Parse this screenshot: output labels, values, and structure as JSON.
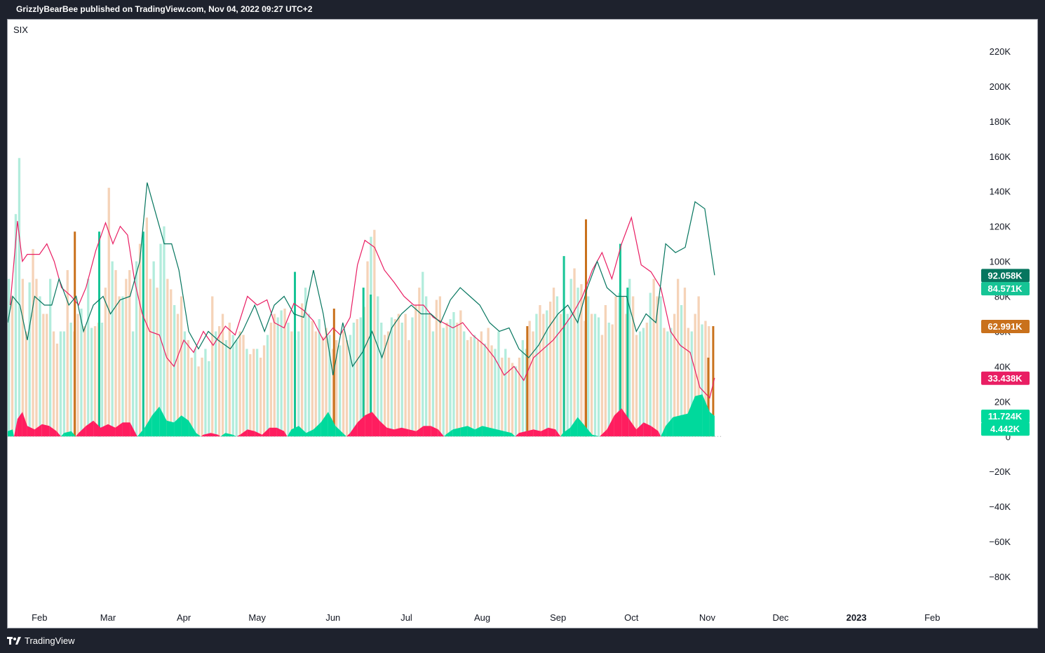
{
  "header": {
    "published_line": "GrizzlyBearBee published on TradingView.com, Nov 04, 2022 09:27 UTC+2"
  },
  "footer": {
    "brand": "TradingView"
  },
  "colors": {
    "volume_up": "#b2ecdc",
    "volume_down": "#f5d3b8",
    "spike_up": "#16c495",
    "spike_down": "#c9711c",
    "line_red": "#e91e63",
    "line_green": "#06765f",
    "area_green": "#00d99c",
    "area_red": "#ff1d5f"
  },
  "chart_data": {
    "type": "bar",
    "symbol": "SIX",
    "ylim": [
      -90000,
      230000
    ],
    "y_ticks": [
      "220K",
      "200K",
      "180K",
      "160K",
      "140K",
      "120K",
      "100K",
      "80K",
      "60K",
      "40K",
      "20K",
      "0",
      "−20K",
      "−40K",
      "−60K",
      "−80K"
    ],
    "y_tick_values": [
      220000,
      200000,
      180000,
      160000,
      140000,
      120000,
      100000,
      80000,
      60000,
      40000,
      20000,
      0,
      -20000,
      -40000,
      -60000,
      -80000
    ],
    "x_months": [
      "Feb",
      "Mar",
      "Apr",
      "May",
      "Jun",
      "Jul",
      "Aug",
      "Sep",
      "Oct",
      "Nov",
      "Dec",
      "2023",
      "Feb"
    ],
    "x_month_dates": [
      "2022-02-01",
      "2022-03-01",
      "2022-04-01",
      "2022-05-01",
      "2022-06-01",
      "2022-07-01",
      "2022-08-01",
      "2022-09-01",
      "2022-10-01",
      "2022-11-01",
      "2022-12-01",
      "2023-01-01",
      "2023-02-01"
    ],
    "x_range": [
      "2022-01-19",
      "2023-02-21"
    ],
    "grid": false,
    "last_values": [
      {
        "label": "92.058K",
        "value": 92058,
        "color": "#06765f"
      },
      {
        "label": "84.571K",
        "value": 84571,
        "color": "#16c495"
      },
      {
        "label": "62.991K",
        "value": 62991,
        "color": "#c9711c"
      },
      {
        "label": "33.438K",
        "value": 33438,
        "color": "#e91e63"
      },
      {
        "label": "11.724K",
        "value": 11724,
        "color": "#00d99c"
      },
      {
        "label": "4.442K",
        "value": 4442,
        "color": "#00d99c"
      }
    ],
    "series": [
      {
        "name": "",
        "kind": "volume_bars",
        "start": "2022-01-19",
        "step_days": 1.41,
        "values": [
          90000,
          80000,
          127000,
          159000,
          90000,
          60000,
          88000,
          107000,
          90000,
          80000,
          70000,
          70000,
          90000,
          60000,
          53000,
          60000,
          60000,
          95000,
          65000,
          60000,
          70000,
          73000,
          63000,
          90000,
          62000,
          63000,
          65000,
          65000,
          85000,
          142000,
          100000,
          95000,
          80000,
          80000,
          90000,
          95000,
          60000,
          100000,
          110000,
          110000,
          125000,
          90000,
          100000,
          85000,
          110000,
          120000,
          90000,
          84000,
          75000,
          70000,
          80000,
          60000,
          55000,
          45000,
          50000,
          40000,
          45000,
          50000,
          43000,
          80000,
          60000,
          63000,
          70000,
          55000,
          65000,
          58000,
          55000,
          60000,
          58000,
          50000,
          47000,
          50000,
          50000,
          45000,
          52000,
          58000,
          65000,
          70000,
          68000,
          72000,
          73000,
          65000,
          60000,
          55000,
          60000,
          76000,
          85000,
          70000,
          66000,
          60000,
          67000,
          57000,
          62000,
          58000,
          50000,
          55000,
          52000,
          60000,
          55000,
          58000,
          65000,
          67000,
          68000,
          74000,
          100000,
          114000,
          118000,
          80000,
          65000,
          58000,
          60000,
          68000,
          67000,
          70000,
          65000,
          70000,
          55000,
          68000,
          75000,
          85000,
          94000,
          80000,
          70000,
          60000,
          78000,
          80000,
          62000,
          65000,
          67000,
          71000,
          65000,
          72000,
          60000,
          55000,
          57000,
          58000,
          55000,
          60000,
          53000,
          62000,
          52000,
          50000,
          60000,
          45000,
          50000,
          45000,
          42000,
          40000,
          45000,
          55000,
          50000,
          66000,
          60000,
          70000,
          75000,
          70000,
          72000,
          77000,
          85000,
          80000,
          70000,
          73000,
          70000,
          90000,
          96000,
          85000,
          87000,
          66000,
          80000,
          70000,
          70000,
          68000,
          58000,
          75000,
          65000,
          64000,
          80000,
          82000,
          80000,
          70000,
          90000,
          80000,
          58000,
          60000,
          62000,
          65000,
          82000,
          90000,
          80000,
          80000,
          62000,
          60000,
          62000,
          70000,
          90000,
          75000,
          85000,
          62000,
          60000,
          70000,
          80000,
          64000,
          66000,
          63000
        ]
      },
      {
        "name": "",
        "kind": "volume_spikes",
        "values": [
          {
            "date": "2022-02-15",
            "value": 117000,
            "dir": "down"
          },
          {
            "date": "2022-02-25",
            "value": 117000,
            "dir": "up"
          },
          {
            "date": "2022-03-15",
            "value": 117000,
            "dir": "up"
          },
          {
            "date": "2022-05-16",
            "value": 94000,
            "dir": "up"
          },
          {
            "date": "2022-06-01",
            "value": 73000,
            "dir": "down"
          },
          {
            "date": "2022-06-13",
            "value": 85000,
            "dir": "up"
          },
          {
            "date": "2022-06-16",
            "value": 81000,
            "dir": "up"
          },
          {
            "date": "2022-08-19",
            "value": 63000,
            "dir": "down"
          },
          {
            "date": "2022-09-03",
            "value": 103000,
            "dir": "up"
          },
          {
            "date": "2022-09-12",
            "value": 124000,
            "dir": "down"
          },
          {
            "date": "2022-09-26",
            "value": 110000,
            "dir": "up"
          },
          {
            "date": "2022-09-29",
            "value": 85000,
            "dir": "up"
          },
          {
            "date": "2022-11-01",
            "value": 45000,
            "dir": "down"
          },
          {
            "date": "2022-11-03",
            "value": 63000,
            "dir": "down"
          }
        ]
      },
      {
        "name": "",
        "kind": "line_red",
        "x": [
          "2022-01-20",
          "2022-01-23",
          "2022-01-25",
          "2022-01-27",
          "2022-02-01",
          "2022-02-04",
          "2022-02-07",
          "2022-02-10",
          "2022-02-14",
          "2022-02-17",
          "2022-02-20",
          "2022-02-24",
          "2022-02-28",
          "2022-03-03",
          "2022-03-06",
          "2022-03-09",
          "2022-03-12",
          "2022-03-15",
          "2022-03-18",
          "2022-03-22",
          "2022-03-25",
          "2022-03-28",
          "2022-04-01",
          "2022-04-05",
          "2022-04-09",
          "2022-04-13",
          "2022-04-18",
          "2022-04-22",
          "2022-04-27",
          "2022-05-01",
          "2022-05-05",
          "2022-05-08",
          "2022-05-12",
          "2022-05-16",
          "2022-05-20",
          "2022-05-24",
          "2022-05-28",
          "2022-06-01",
          "2022-06-04",
          "2022-06-08",
          "2022-06-11",
          "2022-06-14",
          "2022-06-18",
          "2022-06-22",
          "2022-06-26",
          "2022-06-30",
          "2022-07-04",
          "2022-07-08",
          "2022-07-12",
          "2022-07-16",
          "2022-07-20",
          "2022-07-24",
          "2022-07-28",
          "2022-08-02",
          "2022-08-06",
          "2022-08-10",
          "2022-08-14",
          "2022-08-18",
          "2022-08-22",
          "2022-08-26",
          "2022-08-30",
          "2022-09-03",
          "2022-09-07",
          "2022-09-11",
          "2022-09-15",
          "2022-09-19",
          "2022-09-23",
          "2022-09-27",
          "2022-10-01",
          "2022-10-05",
          "2022-10-09",
          "2022-10-13",
          "2022-10-17",
          "2022-10-21",
          "2022-10-25",
          "2022-10-29",
          "2022-11-02",
          "2022-11-04"
        ],
        "values": [
          75000,
          123000,
          100000,
          104000,
          104000,
          110000,
          100000,
          85000,
          80000,
          75000,
          85000,
          106000,
          122000,
          110000,
          120000,
          115000,
          88000,
          70000,
          60000,
          58000,
          45000,
          40000,
          55000,
          48000,
          60000,
          52000,
          63000,
          58000,
          80000,
          75000,
          78000,
          65000,
          62000,
          76000,
          72000,
          66000,
          55000,
          62000,
          58000,
          68000,
          98000,
          112000,
          108000,
          95000,
          88000,
          80000,
          75000,
          75000,
          68000,
          65000,
          62000,
          65000,
          58000,
          52000,
          45000,
          35000,
          40000,
          32000,
          45000,
          50000,
          55000,
          62000,
          70000,
          80000,
          95000,
          105000,
          90000,
          110000,
          125000,
          98000,
          94000,
          85000,
          60000,
          52000,
          48000,
          28000,
          22000,
          33438
        ]
      },
      {
        "name": "",
        "kind": "line_green",
        "x": [
          "2022-01-19",
          "2022-01-21",
          "2022-01-24",
          "2022-01-27",
          "2022-01-30",
          "2022-02-03",
          "2022-02-06",
          "2022-02-09",
          "2022-02-13",
          "2022-02-16",
          "2022-02-19",
          "2022-02-23",
          "2022-02-27",
          "2022-03-02",
          "2022-03-06",
          "2022-03-10",
          "2022-03-14",
          "2022-03-17",
          "2022-03-20",
          "2022-03-24",
          "2022-03-27",
          "2022-03-30",
          "2022-04-03",
          "2022-04-07",
          "2022-04-11",
          "2022-04-15",
          "2022-04-20",
          "2022-04-25",
          "2022-04-30",
          "2022-05-04",
          "2022-05-08",
          "2022-05-12",
          "2022-05-16",
          "2022-05-20",
          "2022-05-24",
          "2022-05-28",
          "2022-06-01",
          "2022-06-05",
          "2022-06-09",
          "2022-06-13",
          "2022-06-17",
          "2022-06-21",
          "2022-06-25",
          "2022-06-29",
          "2022-07-03",
          "2022-07-07",
          "2022-07-11",
          "2022-07-15",
          "2022-07-19",
          "2022-07-23",
          "2022-07-27",
          "2022-07-31",
          "2022-08-04",
          "2022-08-08",
          "2022-08-12",
          "2022-08-16",
          "2022-08-20",
          "2022-08-24",
          "2022-08-28",
          "2022-09-01",
          "2022-09-05",
          "2022-09-09",
          "2022-09-13",
          "2022-09-17",
          "2022-09-21",
          "2022-09-25",
          "2022-09-29",
          "2022-10-03",
          "2022-10-07",
          "2022-10-11",
          "2022-10-15",
          "2022-10-19",
          "2022-10-23",
          "2022-10-27",
          "2022-10-31",
          "2022-11-04"
        ],
        "values": [
          65000,
          80000,
          75000,
          55000,
          80000,
          75000,
          75000,
          90000,
          75000,
          80000,
          60000,
          75000,
          80000,
          70000,
          78000,
          80000,
          100000,
          145000,
          130000,
          110000,
          110000,
          95000,
          60000,
          50000,
          60000,
          55000,
          50000,
          60000,
          75000,
          60000,
          75000,
          80000,
          70000,
          68000,
          95000,
          70000,
          35000,
          65000,
          40000,
          48000,
          60000,
          45000,
          62000,
          70000,
          75000,
          70000,
          70000,
          65000,
          78000,
          85000,
          80000,
          75000,
          65000,
          60000,
          62000,
          50000,
          45000,
          52000,
          62000,
          70000,
          75000,
          65000,
          85000,
          100000,
          85000,
          80000,
          80000,
          60000,
          70000,
          65000,
          110000,
          105000,
          108000,
          134000,
          130000,
          92058
        ]
      },
      {
        "name": "",
        "kind": "histogram_area",
        "x": [
          "2022-01-19",
          "2022-01-21",
          "2022-01-23",
          "2022-01-25",
          "2022-01-27",
          "2022-01-30",
          "2022-02-02",
          "2022-02-05",
          "2022-02-08",
          "2022-02-11",
          "2022-02-14",
          "2022-02-17",
          "2022-02-20",
          "2022-02-23",
          "2022-02-26",
          "2022-03-01",
          "2022-03-04",
          "2022-03-07",
          "2022-03-10",
          "2022-03-13",
          "2022-03-16",
          "2022-03-19",
          "2022-03-22",
          "2022-03-25",
          "2022-03-28",
          "2022-03-31",
          "2022-04-03",
          "2022-04-06",
          "2022-04-09",
          "2022-04-12",
          "2022-04-15",
          "2022-04-18",
          "2022-04-21",
          "2022-04-24",
          "2022-04-27",
          "2022-04-30",
          "2022-05-03",
          "2022-05-06",
          "2022-05-09",
          "2022-05-12",
          "2022-05-15",
          "2022-05-18",
          "2022-05-21",
          "2022-05-24",
          "2022-05-27",
          "2022-05-30",
          "2022-06-02",
          "2022-06-05",
          "2022-06-08",
          "2022-06-11",
          "2022-06-14",
          "2022-06-17",
          "2022-06-20",
          "2022-06-23",
          "2022-06-26",
          "2022-06-29",
          "2022-07-02",
          "2022-07-05",
          "2022-07-08",
          "2022-07-11",
          "2022-07-14",
          "2022-07-17",
          "2022-07-20",
          "2022-07-23",
          "2022-07-26",
          "2022-07-29",
          "2022-08-01",
          "2022-08-04",
          "2022-08-07",
          "2022-08-10",
          "2022-08-13",
          "2022-08-16",
          "2022-08-19",
          "2022-08-22",
          "2022-08-25",
          "2022-08-28",
          "2022-08-31",
          "2022-09-03",
          "2022-09-06",
          "2022-09-09",
          "2022-09-12",
          "2022-09-15",
          "2022-09-18",
          "2022-09-21",
          "2022-09-24",
          "2022-09-27",
          "2022-09-30",
          "2022-10-03",
          "2022-10-06",
          "2022-10-09",
          "2022-10-12",
          "2022-10-15",
          "2022-10-18",
          "2022-10-21",
          "2022-10-24",
          "2022-10-27",
          "2022-10-30",
          "2022-11-02",
          "2022-11-04"
        ],
        "values": [
          3000,
          4000,
          -10000,
          -14000,
          -6000,
          -4000,
          -7000,
          -6000,
          -3000,
          2000,
          3000,
          -2000,
          -6000,
          -9000,
          -5000,
          -7000,
          -5000,
          -8000,
          -8000,
          0,
          5000,
          12000,
          17000,
          9000,
          8000,
          12000,
          9000,
          2000,
          -1000,
          -2000,
          -1000,
          2000,
          1000,
          -1000,
          -4000,
          -3000,
          -1000,
          -5000,
          -5000,
          -3000,
          4000,
          6000,
          2000,
          4000,
          8000,
          14000,
          6000,
          2000,
          -2000,
          -8000,
          -12000,
          -14000,
          -9000,
          -5000,
          -4000,
          -5000,
          -4000,
          -3000,
          -6000,
          -6000,
          -4000,
          1000,
          4000,
          5000,
          6000,
          4000,
          6000,
          5000,
          4000,
          3000,
          2000,
          -2000,
          -3000,
          -4000,
          -3000,
          -5000,
          -4000,
          2000,
          5000,
          11000,
          6000,
          1000,
          0,
          -4000,
          -12000,
          -16000,
          -10000,
          -4000,
          -8000,
          -6000,
          -3000,
          6000,
          11000,
          12000,
          13000,
          23000,
          24000,
          14000,
          11724
        ]
      }
    ]
  }
}
